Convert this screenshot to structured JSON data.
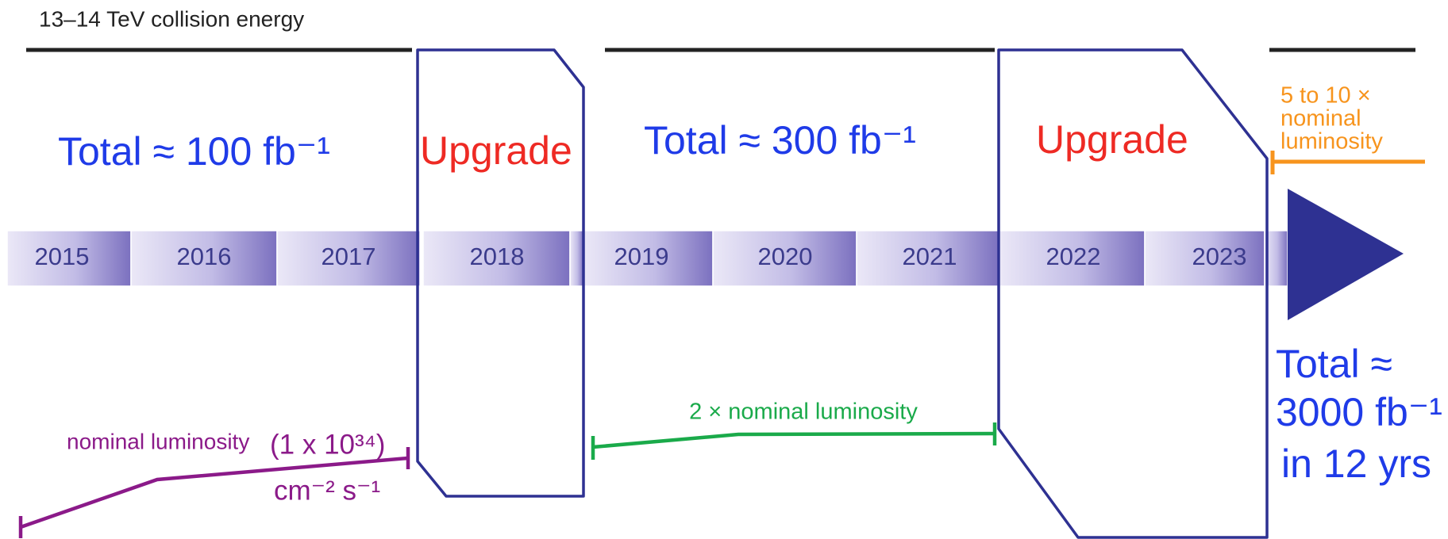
{
  "title": "13–14 TeV collision energy",
  "years": [
    "2015",
    "2016",
    "2017",
    "2018",
    "2019",
    "2020",
    "2021",
    "2022",
    "2023"
  ],
  "phases": [
    {
      "total": "Total ≈ 100 fb⁻¹"
    },
    {
      "label": "Upgrade"
    },
    {
      "total": "Total ≈ 300 fb⁻¹"
    },
    {
      "label": "Upgrade"
    }
  ],
  "luminosity": {
    "run1": {
      "label": "nominal luminosity",
      "value": "(1 x 10³⁴)",
      "unit": "cm⁻² s⁻¹"
    },
    "run2": {
      "label": "2 × nominal luminosity"
    },
    "future": {
      "lines": [
        "5 to 10 ×",
        "nominal",
        "luminosity"
      ]
    }
  },
  "final_total": [
    "Total ≈",
    "3000 fb⁻¹",
    "in 12 yrs"
  ]
}
